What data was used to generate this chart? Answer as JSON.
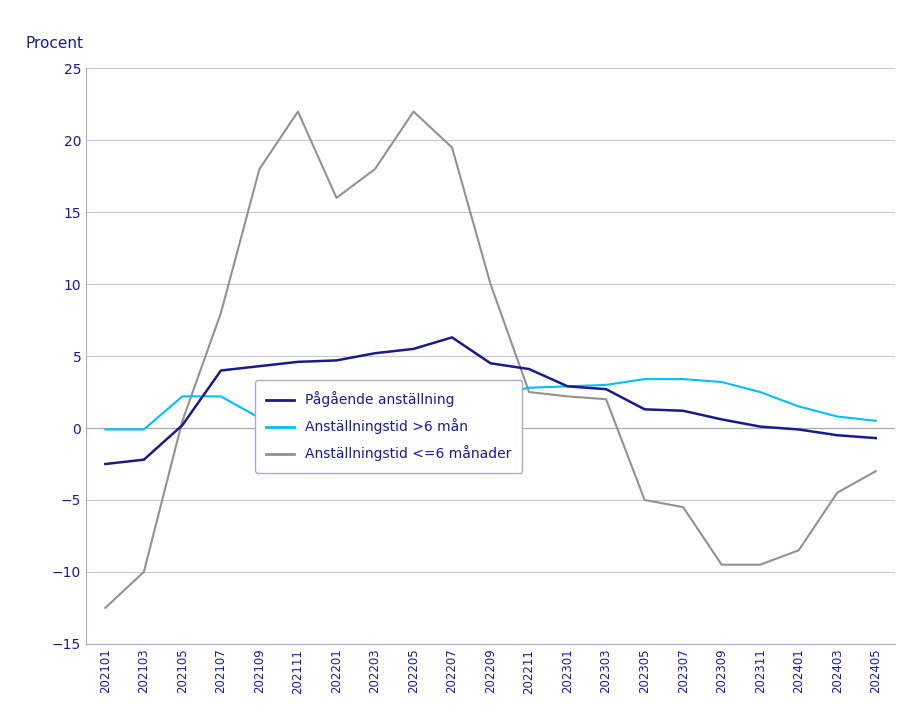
{
  "ylabel": "Procent",
  "ylim": [
    -15,
    25
  ],
  "yticks": [
    -15,
    -10,
    -5,
    0,
    5,
    10,
    15,
    20,
    25
  ],
  "line_color_dark_blue": "#1A1A8C",
  "line_color_cyan": "#00BFFF",
  "line_color_gray": "#929292",
  "legend_labels": [
    "Pågående anställning",
    "Anställningstid >6 mån",
    "Anställningstid <=6 månader"
  ],
  "x_labels": [
    "202101",
    "202103",
    "202105",
    "202107",
    "202109",
    "202111",
    "202201",
    "202203",
    "202205",
    "202207",
    "202209",
    "202211",
    "202301",
    "202303",
    "202305",
    "202307",
    "202309",
    "202311",
    "202401",
    "202403",
    "202405"
  ],
  "series_dark_blue": [
    -2.5,
    -2.2,
    0.2,
    4.0,
    4.3,
    4.6,
    4.7,
    5.2,
    5.5,
    6.3,
    4.5,
    4.1,
    2.9,
    2.7,
    1.3,
    1.2,
    0.6,
    0.1,
    -0.1,
    -0.5,
    -0.7
  ],
  "series_cyan": [
    -0.1,
    -0.1,
    2.2,
    2.2,
    0.7,
    0.7,
    1.0,
    1.5,
    2.1,
    2.3,
    2.3,
    2.8,
    2.9,
    3.0,
    3.4,
    3.4,
    3.2,
    2.5,
    1.5,
    0.8,
    0.5
  ],
  "series_gray": [
    -12.5,
    -10.0,
    0.5,
    8.0,
    18.0,
    22.0,
    16.0,
    18.0,
    22.0,
    19.5,
    10.0,
    2.5,
    2.2,
    2.0,
    -5.0,
    -5.5,
    -9.5,
    -9.5,
    -8.5,
    -4.5,
    -3.0
  ],
  "background_color": "#FFFFFF",
  "grid_color": "#C8C8DC",
  "text_color": "#1A1A99",
  "spine_color": "#AAAACC"
}
